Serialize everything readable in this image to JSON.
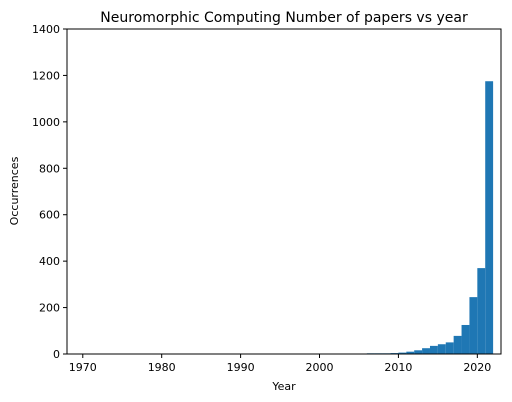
{
  "chart_data": {
    "type": "bar",
    "title": "Neuromorphic Computing Number of papers vs year",
    "xlabel": "Year",
    "ylabel": "Occurrences",
    "xlim": [
      1968,
      2023
    ],
    "ylim": [
      0,
      1400
    ],
    "xticks": [
      1970,
      1980,
      1990,
      2000,
      2010,
      2020
    ],
    "yticks": [
      0,
      200,
      400,
      600,
      800,
      1000,
      1200,
      1400
    ],
    "bin_width": 1,
    "bins": [
      {
        "year": 1993,
        "value": 2
      },
      {
        "year": 1999,
        "value": 2
      },
      {
        "year": 2000,
        "value": 2
      },
      {
        "year": 2002,
        "value": 2
      },
      {
        "year": 2004,
        "value": 2
      },
      {
        "year": 2006,
        "value": 3
      },
      {
        "year": 2007,
        "value": 3
      },
      {
        "year": 2008,
        "value": 3
      },
      {
        "year": 2009,
        "value": 4
      },
      {
        "year": 2010,
        "value": 6
      },
      {
        "year": 2011,
        "value": 10
      },
      {
        "year": 2012,
        "value": 16
      },
      {
        "year": 2013,
        "value": 25
      },
      {
        "year": 2014,
        "value": 35
      },
      {
        "year": 2015,
        "value": 42
      },
      {
        "year": 2016,
        "value": 50
      },
      {
        "year": 2017,
        "value": 78
      },
      {
        "year": 2018,
        "value": 125
      },
      {
        "year": 2019,
        "value": 245
      },
      {
        "year": 2020,
        "value": 370
      },
      {
        "year": 2021,
        "value": 1175
      }
    ],
    "bar_color": "#1f77b4",
    "grid": false,
    "legend": "none"
  }
}
